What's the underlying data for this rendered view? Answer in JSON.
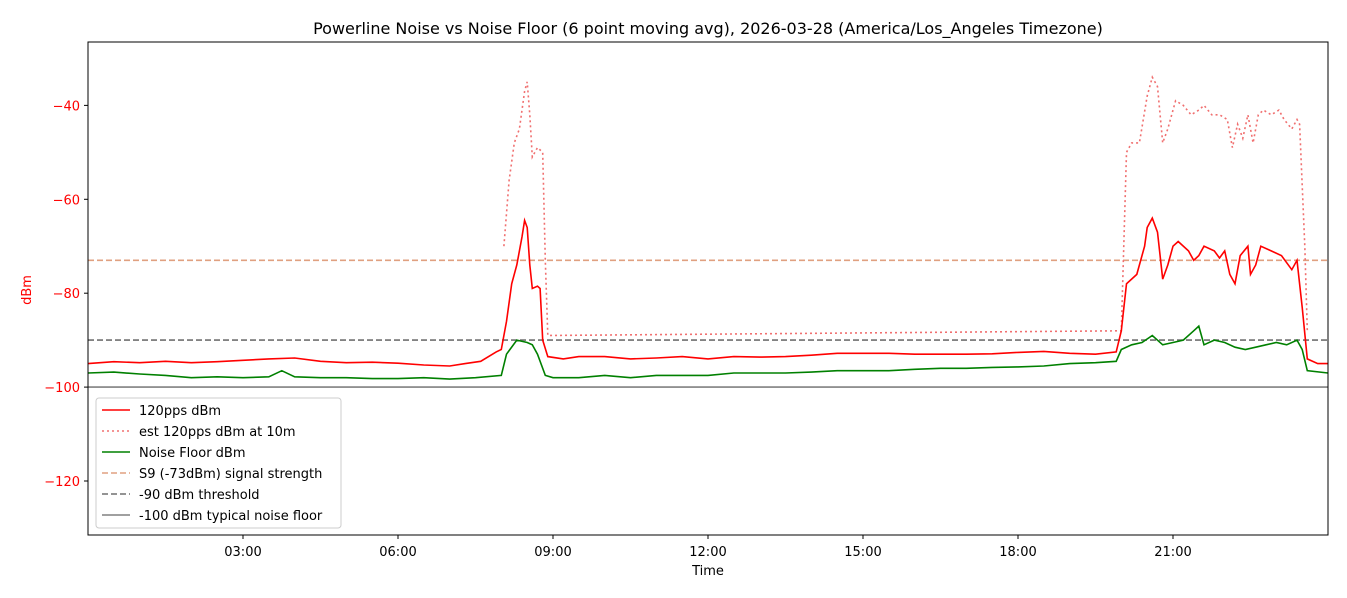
{
  "chart_data": {
    "type": "line",
    "title": "Powerline Noise vs Noise Floor (6 point moving avg), 2026-03-28 (America/Los_Angeles Timezone)",
    "xlabel": "Time",
    "ylabel": "dBm",
    "xlim": [
      0.0,
      24.0
    ],
    "ylim": [
      -131.5,
      -26.5
    ],
    "x_unit": "hours since 00:00 on 2026-03-28",
    "x_ticks": [
      {
        "value": 3,
        "label": "03:00"
      },
      {
        "value": 6,
        "label": "06:00"
      },
      {
        "value": 9,
        "label": "09:00"
      },
      {
        "value": 12,
        "label": "12:00"
      },
      {
        "value": 15,
        "label": "15:00"
      },
      {
        "value": 18,
        "label": "18:00"
      },
      {
        "value": 21,
        "label": "21:00"
      }
    ],
    "y_ticks": [
      {
        "value": -40,
        "label": "−40"
      },
      {
        "value": -60,
        "label": "−60"
      },
      {
        "value": -80,
        "label": "−80"
      },
      {
        "value": -100,
        "label": "−100"
      },
      {
        "value": -120,
        "label": "−120"
      }
    ],
    "grid": false,
    "legend_position": "lower-left",
    "colors": {
      "ylabel": "#ff0000",
      "axis": "#000000"
    },
    "series": [
      {
        "name": "120pps dBm",
        "color": "#ff0000",
        "style": "solid",
        "points": [
          [
            0.0,
            -95.0
          ],
          [
            0.5,
            -94.6
          ],
          [
            1.0,
            -94.8
          ],
          [
            1.5,
            -94.5
          ],
          [
            2.0,
            -94.8
          ],
          [
            2.5,
            -94.6
          ],
          [
            3.0,
            -94.3
          ],
          [
            3.5,
            -94.0
          ],
          [
            4.0,
            -93.8
          ],
          [
            4.5,
            -94.5
          ],
          [
            5.0,
            -94.8
          ],
          [
            5.5,
            -94.7
          ],
          [
            6.0,
            -94.9
          ],
          [
            6.5,
            -95.3
          ],
          [
            7.0,
            -95.5
          ],
          [
            7.3,
            -95.0
          ],
          [
            7.6,
            -94.5
          ],
          [
            7.9,
            -92.5
          ],
          [
            8.0,
            -92.0
          ],
          [
            8.1,
            -86.0
          ],
          [
            8.2,
            -78.0
          ],
          [
            8.3,
            -74.0
          ],
          [
            8.4,
            -68.0
          ],
          [
            8.45,
            -64.5
          ],
          [
            8.5,
            -66.0
          ],
          [
            8.55,
            -74.0
          ],
          [
            8.6,
            -79.0
          ],
          [
            8.7,
            -78.5
          ],
          [
            8.75,
            -79.0
          ],
          [
            8.8,
            -90.0
          ],
          [
            8.9,
            -93.5
          ],
          [
            9.2,
            -94.0
          ],
          [
            9.5,
            -93.5
          ],
          [
            10.0,
            -93.5
          ],
          [
            10.5,
            -94.0
          ],
          [
            11.0,
            -93.8
          ],
          [
            11.5,
            -93.5
          ],
          [
            12.0,
            -94.0
          ],
          [
            12.5,
            -93.5
          ],
          [
            13.0,
            -93.6
          ],
          [
            13.5,
            -93.5
          ],
          [
            14.0,
            -93.2
          ],
          [
            14.5,
            -92.8
          ],
          [
            15.0,
            -92.8
          ],
          [
            15.5,
            -92.8
          ],
          [
            16.0,
            -93.0
          ],
          [
            16.5,
            -93.0
          ],
          [
            17.0,
            -93.0
          ],
          [
            17.5,
            -92.9
          ],
          [
            18.0,
            -92.6
          ],
          [
            18.5,
            -92.4
          ],
          [
            19.0,
            -92.8
          ],
          [
            19.5,
            -93.0
          ],
          [
            19.9,
            -92.5
          ],
          [
            20.0,
            -88.0
          ],
          [
            20.1,
            -78.0
          ],
          [
            20.3,
            -76.0
          ],
          [
            20.45,
            -70.0
          ],
          [
            20.5,
            -66.0
          ],
          [
            20.6,
            -64.0
          ],
          [
            20.7,
            -67.0
          ],
          [
            20.8,
            -77.0
          ],
          [
            20.9,
            -74.0
          ],
          [
            21.0,
            -70.0
          ],
          [
            21.1,
            -69.0
          ],
          [
            21.3,
            -71.0
          ],
          [
            21.4,
            -73.0
          ],
          [
            21.5,
            -72.0
          ],
          [
            21.6,
            -70.0
          ],
          [
            21.8,
            -71.0
          ],
          [
            21.9,
            -72.5
          ],
          [
            22.0,
            -71.0
          ],
          [
            22.1,
            -76.0
          ],
          [
            22.2,
            -78.0
          ],
          [
            22.3,
            -72.0
          ],
          [
            22.45,
            -70.0
          ],
          [
            22.5,
            -76.0
          ],
          [
            22.6,
            -74.0
          ],
          [
            22.7,
            -70.0
          ],
          [
            22.9,
            -71.0
          ],
          [
            23.1,
            -72.0
          ],
          [
            23.3,
            -75.0
          ],
          [
            23.4,
            -73.0
          ],
          [
            23.5,
            -83.0
          ],
          [
            23.6,
            -94.0
          ],
          [
            23.8,
            -95.0
          ],
          [
            24.0,
            -95.0
          ]
        ]
      },
      {
        "name": "est 120pps dBm at 10m",
        "color": "#f07070",
        "style": "dotted",
        "points": [
          [
            8.05,
            -70.0
          ],
          [
            8.15,
            -56.0
          ],
          [
            8.25,
            -48.0
          ],
          [
            8.35,
            -45.0
          ],
          [
            8.45,
            -37.0
          ],
          [
            8.5,
            -35.0
          ],
          [
            8.55,
            -42.0
          ],
          [
            8.6,
            -51.0
          ],
          [
            8.7,
            -49.0
          ],
          [
            8.8,
            -50.0
          ],
          [
            8.85,
            -73.0
          ],
          [
            8.9,
            -89.0
          ],
          [
            20.0,
            -88.0
          ],
          [
            20.1,
            -50.0
          ],
          [
            20.2,
            -48.0
          ],
          [
            20.35,
            -48.0
          ],
          [
            20.5,
            -38.0
          ],
          [
            20.6,
            -34.0
          ],
          [
            20.7,
            -36.0
          ],
          [
            20.8,
            -48.0
          ],
          [
            20.9,
            -45.0
          ],
          [
            21.05,
            -39.0
          ],
          [
            21.2,
            -40.0
          ],
          [
            21.35,
            -42.0
          ],
          [
            21.5,
            -41.0
          ],
          [
            21.6,
            -40.0
          ],
          [
            21.75,
            -42.0
          ],
          [
            21.9,
            -42.0
          ],
          [
            22.05,
            -43.0
          ],
          [
            22.15,
            -49.0
          ],
          [
            22.25,
            -44.0
          ],
          [
            22.35,
            -47.0
          ],
          [
            22.45,
            -42.0
          ],
          [
            22.55,
            -48.0
          ],
          [
            22.65,
            -42.0
          ],
          [
            22.75,
            -41.0
          ],
          [
            22.9,
            -42.0
          ],
          [
            23.05,
            -41.0
          ],
          [
            23.15,
            -43.0
          ],
          [
            23.3,
            -45.0
          ],
          [
            23.4,
            -43.0
          ],
          [
            23.45,
            -44.0
          ],
          [
            23.55,
            -70.0
          ],
          [
            23.6,
            -88.0
          ]
        ]
      },
      {
        "name": "Noise Floor dBm",
        "color": "#008000",
        "style": "solid",
        "points": [
          [
            0.0,
            -97.0
          ],
          [
            0.5,
            -96.8
          ],
          [
            1.0,
            -97.2
          ],
          [
            1.5,
            -97.5
          ],
          [
            2.0,
            -98.0
          ],
          [
            2.5,
            -97.8
          ],
          [
            3.0,
            -98.0
          ],
          [
            3.5,
            -97.8
          ],
          [
            3.75,
            -96.5
          ],
          [
            4.0,
            -97.8
          ],
          [
            4.5,
            -98.0
          ],
          [
            5.0,
            -98.0
          ],
          [
            5.5,
            -98.2
          ],
          [
            6.0,
            -98.2
          ],
          [
            6.5,
            -98.0
          ],
          [
            7.0,
            -98.3
          ],
          [
            7.5,
            -98.0
          ],
          [
            8.0,
            -97.5
          ],
          [
            8.1,
            -93.0
          ],
          [
            8.3,
            -90.0
          ],
          [
            8.5,
            -90.5
          ],
          [
            8.6,
            -91.0
          ],
          [
            8.7,
            -93.0
          ],
          [
            8.85,
            -97.5
          ],
          [
            9.0,
            -98.0
          ],
          [
            9.5,
            -98.0
          ],
          [
            10.0,
            -97.5
          ],
          [
            10.5,
            -98.0
          ],
          [
            11.0,
            -97.5
          ],
          [
            11.5,
            -97.5
          ],
          [
            12.0,
            -97.5
          ],
          [
            12.5,
            -97.0
          ],
          [
            13.0,
            -97.0
          ],
          [
            13.5,
            -97.0
          ],
          [
            14.0,
            -96.8
          ],
          [
            14.5,
            -96.5
          ],
          [
            15.0,
            -96.5
          ],
          [
            15.5,
            -96.5
          ],
          [
            16.0,
            -96.2
          ],
          [
            16.5,
            -96.0
          ],
          [
            17.0,
            -96.0
          ],
          [
            17.5,
            -95.8
          ],
          [
            18.0,
            -95.7
          ],
          [
            18.5,
            -95.5
          ],
          [
            19.0,
            -95.0
          ],
          [
            19.5,
            -94.8
          ],
          [
            19.9,
            -94.5
          ],
          [
            20.0,
            -92.0
          ],
          [
            20.2,
            -91.0
          ],
          [
            20.4,
            -90.5
          ],
          [
            20.6,
            -89.0
          ],
          [
            20.8,
            -91.0
          ],
          [
            21.0,
            -90.5
          ],
          [
            21.2,
            -90.0
          ],
          [
            21.4,
            -88.0
          ],
          [
            21.5,
            -87.0
          ],
          [
            21.6,
            -91.0
          ],
          [
            21.8,
            -90.0
          ],
          [
            22.0,
            -90.5
          ],
          [
            22.2,
            -91.5
          ],
          [
            22.4,
            -92.0
          ],
          [
            22.6,
            -91.5
          ],
          [
            22.8,
            -91.0
          ],
          [
            23.0,
            -90.5
          ],
          [
            23.2,
            -91.0
          ],
          [
            23.4,
            -90.0
          ],
          [
            23.5,
            -92.0
          ],
          [
            23.6,
            -96.5
          ],
          [
            24.0,
            -97.0
          ]
        ]
      },
      {
        "name": "S9 (-73dBm) signal strength",
        "color": "#e0a080",
        "style": "dashed",
        "points": [
          [
            0.0,
            -73.0
          ],
          [
            24.0,
            -73.0
          ]
        ]
      },
      {
        "name": "-90 dBm threshold",
        "color": "#707070",
        "style": "dashed",
        "points": [
          [
            0.0,
            -90.0
          ],
          [
            24.0,
            -90.0
          ]
        ]
      },
      {
        "name": "-100 dBm typical noise floor",
        "color": "#808080",
        "style": "solid",
        "points": [
          [
            0.0,
            -100.0
          ],
          [
            24.0,
            -100.0
          ]
        ]
      }
    ]
  }
}
